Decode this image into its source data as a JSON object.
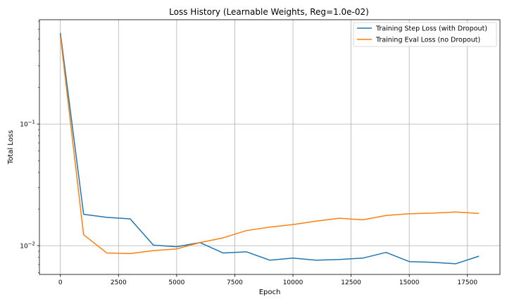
{
  "chart_data": {
    "type": "line",
    "title": "Loss History (Learnable Weights, Reg=1.0e-02)",
    "xlabel": "Epoch",
    "ylabel": "Total Loss",
    "yscale": "log",
    "xlim": [
      -900,
      18900
    ],
    "ylim": [
      0.0058,
      0.72
    ],
    "grid": true,
    "legend_position": "top-right",
    "x_ticks": [
      0,
      2500,
      5000,
      7500,
      10000,
      12500,
      15000,
      17500
    ],
    "y_ticks": [
      {
        "value": 0.1,
        "base": "10",
        "exp": "−1"
      },
      {
        "value": 0.01,
        "base": "10",
        "exp": "−2"
      }
    ],
    "x": [
      0,
      1000,
      2000,
      3000,
      4000,
      5000,
      6000,
      7000,
      8000,
      9000,
      10000,
      11000,
      12000,
      13000,
      14000,
      15000,
      16000,
      17000,
      18000
    ],
    "series": [
      {
        "name": "Training Step Loss (with Dropout)",
        "color": "#1f77b4",
        "values": [
          0.56,
          0.0181,
          0.0171,
          0.0166,
          0.0101,
          0.0098,
          0.0106,
          0.0087,
          0.0089,
          0.0076,
          0.0079,
          0.0076,
          0.0077,
          0.0079,
          0.0088,
          0.0074,
          0.0073,
          0.0071,
          0.0082
        ]
      },
      {
        "name": "Training Eval Loss (no Dropout)",
        "color": "#ff7f0e",
        "values": [
          0.53,
          0.0123,
          0.0087,
          0.0086,
          0.0091,
          0.0094,
          0.0106,
          0.0116,
          0.0133,
          0.0142,
          0.0149,
          0.0159,
          0.0168,
          0.0163,
          0.0177,
          0.0183,
          0.0185,
          0.0189,
          0.0184
        ]
      }
    ]
  }
}
